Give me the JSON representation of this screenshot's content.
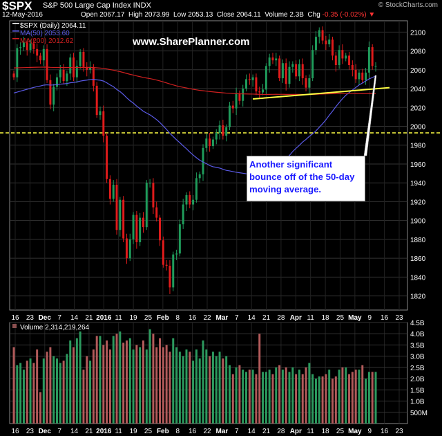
{
  "header": {
    "symbol": "$SPX",
    "name": "S&P 500 Large Cap Index  INDX",
    "date": "12-May-2016",
    "open_label": "Open",
    "open": "2067.17",
    "high_label": "High",
    "high": "2073.99",
    "low_label": "Low",
    "low": "2053.13",
    "close_label": "Close",
    "close": "2064.11",
    "volume_label": "Volume",
    "volume": "2.3B",
    "chg_label": "Chg",
    "chg": "-0.35 (-0.02%)",
    "brand": "© StockCharts.com"
  },
  "watermark": "www.SharePlanner.com",
  "annotation": "Another significant bounce off of the 50-day moving average.",
  "colors": {
    "up": "#1f9c5b",
    "down": "#e01b1b",
    "ma50": "#5a5ae6",
    "ma200": "#d02020",
    "trend": "#ffff44",
    "grid": "#333333"
  },
  "chart_data": [
    {
      "type": "candlestick",
      "legend": [
        {
          "label": "$SPX (Daily) 2064.11",
          "color": "#ffffff"
        },
        {
          "label": "MA(50) 2053.60",
          "color": "#5a5ae6"
        },
        {
          "label": "MA(200) 2012.62",
          "color": "#d02020"
        }
      ],
      "ylim": [
        1805,
        2112
      ],
      "yticks": [
        1820,
        1840,
        1860,
        1880,
        1900,
        1920,
        1940,
        1960,
        1980,
        2000,
        2020,
        2040,
        2060,
        2080,
        2100
      ],
      "xticks": [
        "16",
        "23",
        "Dec",
        "7",
        "14",
        "21",
        "2016",
        "11",
        "19",
        "25",
        "Feb",
        "8",
        "16",
        "22",
        "Mar",
        "7",
        "14",
        "21",
        "28",
        "Apr",
        "11",
        "18",
        "25",
        "May",
        "9",
        "16",
        "23"
      ],
      "support_line": 1993,
      "closes": [
        2052,
        2083,
        2084,
        2089,
        2081,
        2088,
        2082,
        2075,
        2070,
        2082,
        2049,
        2023,
        2042,
        2052,
        2060,
        2048,
        2056,
        2073,
        2052,
        2064,
        2079,
        2063,
        2060,
        2063,
        2043,
        2012,
        2016,
        1990,
        1944,
        1923,
        1938,
        1890,
        1922,
        1881,
        1860,
        1880,
        1906,
        1877,
        1903,
        1893,
        1940,
        1940,
        1914,
        1903,
        1879,
        1853,
        1852,
        1829,
        1864,
        1865,
        1896,
        1917,
        1927,
        1917,
        1922,
        1945,
        1949,
        1977,
        1987,
        1979,
        1986,
        1993,
        2001,
        1990,
        1999,
        2022,
        2019,
        2035,
        2027,
        2040,
        2050,
        2049,
        2052,
        2037,
        2036,
        2039,
        2064,
        2073,
        2070,
        2072,
        2051,
        2067,
        2045,
        2063,
        2066,
        2053,
        2066,
        2051,
        2041,
        2051,
        2081,
        2095,
        2102,
        2091,
        2087,
        2092,
        2075,
        2065,
        2081,
        2072,
        2075,
        2065,
        2060,
        2050,
        2057,
        2049,
        2057,
        2084,
        2064,
        2064
      ]
    },
    {
      "type": "bar",
      "legend_label": "Volume",
      "legend_value": "2,314,219,264",
      "ylim": [
        0,
        4.5
      ],
      "yticks": [
        "500M",
        "1.0B",
        "1.5B",
        "2.0B",
        "2.5B",
        "3.0B",
        "3.5B",
        "4.0B",
        "4.5B"
      ],
      "values": [
        3.4,
        2.6,
        2.7,
        2.4,
        2.8,
        2.9,
        2.7,
        3.3,
        1.4,
        2.9,
        3.2,
        3.4,
        3.0,
        2.9,
        2.7,
        2.8,
        3.1,
        3.7,
        3.4,
        3.8,
        4.1,
        2.4,
        3.0,
        2.8,
        3.3,
        3.9,
        3.9,
        3.5,
        3.7,
        3.3,
        3.9,
        4.0,
        4.1,
        3.6,
        3.7,
        3.8,
        3.3,
        3.5,
        3.4,
        3.7,
        3.3,
        4.2,
        4.0,
        3.4,
        3.8,
        3.4,
        3.5,
        3.2,
        3.8,
        3.4,
        3.2,
        3.0,
        3.3,
        3.2,
        2.8,
        3.3,
        2.9,
        3.7,
        3.3,
        3.0,
        3.2,
        3.0,
        3.2,
        2.9,
        3.0,
        2.6,
        2.2,
        2.5,
        2.6,
        2.4,
        2.3,
        2.4,
        2.4,
        2.2,
        4.0,
        2.3,
        2.3,
        2.4,
        2.2,
        2.5,
        2.6,
        2.4,
        2.5,
        2.3,
        2.5,
        2.2,
        2.4,
        2.2,
        2.5,
        2.7,
        2.2,
        2.0,
        2.1,
        2.1,
        2.2,
        2.4,
        2.0,
        2.1,
        2.4,
        2.5,
        2.5,
        2.2,
        2.3,
        2.4,
        2.4,
        2.6,
        2.0,
        2.3,
        2.3,
        2.3
      ]
    }
  ]
}
